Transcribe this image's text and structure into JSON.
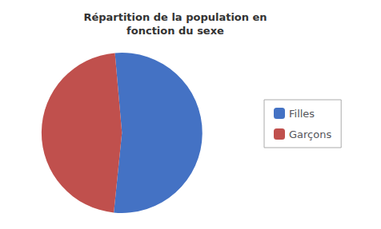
{
  "chart_data": {
    "type": "pie",
    "title": "Répartition de la population en\nfonction du sexe",
    "categories": [
      "Filles",
      "Garçons"
    ],
    "values": [
      53,
      47
    ],
    "colors": [
      "#4472C4",
      "#C0504D"
    ],
    "legend": "right"
  }
}
